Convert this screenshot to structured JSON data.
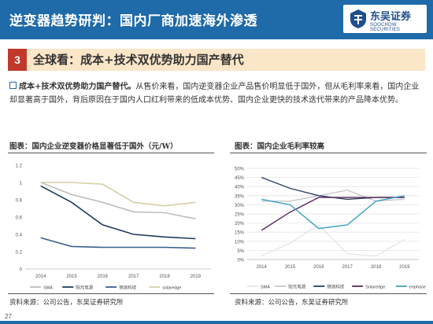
{
  "header": {
    "title": "逆变器趋势研判：国内厂商加速海外渗透",
    "logo_cn": "东吴证券",
    "logo_en": "SOOCHOW SECURITIES"
  },
  "section": {
    "number": "3",
    "title": "全球看：成本+技术双优势助力国产替代"
  },
  "paragraph": {
    "lead": "成本+技术双优势助力国产替代。",
    "body": "从售价来看，国内逆变器企业产品售价明显低于国外，但从毛利率来看，国内企业却显著高于国外，背后原因在于国内人口红利带来的低成本优势、国内企业更快的技术迭代带来的产品降本优势。"
  },
  "figures": [
    {
      "title": "图表：国内企业逆变器价格显著低于国外（元/W）",
      "source": "资料来源：公司公告，东吴证券研究所"
    },
    {
      "title": "图表：国内企业毛利率较高",
      "source": "资料来源：公司公告，东吴证券研究所"
    }
  ],
  "page_number": "27",
  "chart_data": [
    {
      "type": "line",
      "title": "图表：国内企业逆变器价格显著低于国外（元/W）",
      "categories": [
        "2014",
        "2015",
        "2016",
        "2017",
        "2018",
        "2019"
      ],
      "ylim": [
        0,
        1.2
      ],
      "yticks": [
        "0",
        "0.2",
        "0.4",
        "0.6",
        "0.8",
        "1",
        "1.2"
      ],
      "grid": false,
      "legend_position": "bottom",
      "series": [
        {
          "name": "SMA",
          "color": "#bdbdbd",
          "values": [
            1.0,
            0.86,
            0.77,
            0.66,
            0.65,
            0.58
          ]
        },
        {
          "name": "阳光电源",
          "color": "#1f3a5f",
          "values": [
            0.96,
            0.77,
            0.51,
            0.4,
            0.37,
            0.35
          ]
        },
        {
          "name": "锦浪科技",
          "color": "#3a5f8f",
          "values": [
            0.36,
            0.26,
            0.25,
            0.25,
            0.25,
            0.24
          ]
        },
        {
          "name": "solaredge",
          "color": "#d5d0a8",
          "values": [
            1.0,
            1.0,
            0.98,
            0.77,
            0.73,
            0.77
          ]
        }
      ]
    },
    {
      "type": "line",
      "title": "图表：国内企业毛利率较高",
      "categories": [
        "2014",
        "2015",
        "2016",
        "2017",
        "2018",
        "2019"
      ],
      "ylim": [
        0,
        50
      ],
      "yticks": [
        "0%",
        "5%",
        "10%",
        "15%",
        "20%",
        "25%",
        "30%",
        "35%",
        "40%",
        "45%",
        "50%"
      ],
      "grid": true,
      "legend_position": "bottom",
      "series": [
        {
          "name": "SMA",
          "color": "#e6e6e6",
          "values": [
            2,
            9,
            19,
            3,
            2,
            11
          ]
        },
        {
          "name": "阳光电源",
          "color": "#c8c8c8",
          "values": [
            32,
            32,
            35,
            38,
            32,
            33
          ]
        },
        {
          "name": "锦浪科技",
          "color": "#2b3f5f",
          "values": [
            45,
            39,
            35,
            33,
            34,
            34
          ]
        },
        {
          "name": "Solaredge",
          "color": "#5a2a5a",
          "values": [
            16,
            26,
            34,
            34,
            34,
            34
          ]
        },
        {
          "name": "enphase",
          "color": "#3fa0c8",
          "values": [
            33,
            30,
            17,
            19,
            32,
            35
          ]
        }
      ]
    }
  ]
}
